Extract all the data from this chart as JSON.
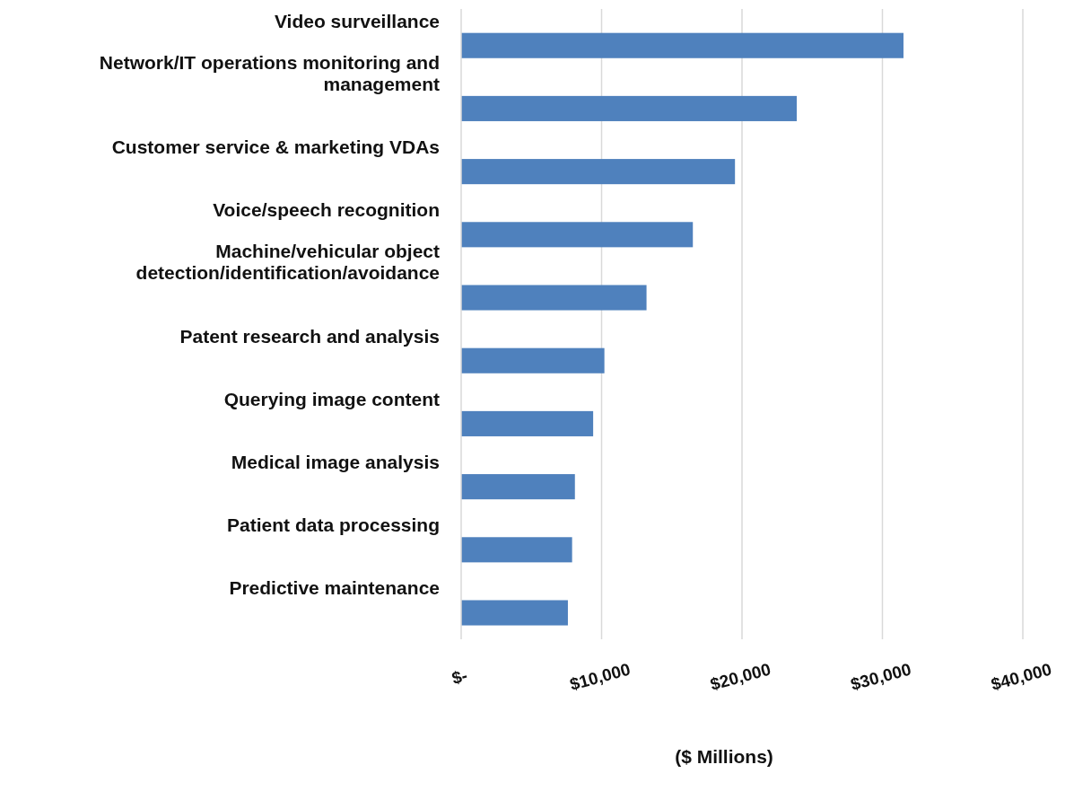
{
  "chart_data": {
    "type": "bar",
    "orientation": "horizontal",
    "xlabel": "($ Millions)",
    "categories": [
      "Video surveillance",
      "Network/IT operations monitoring and management",
      "Customer service & marketing VDAs",
      "Voice/speech recognition",
      "Machine/vehicular object detection/identification/avoidance",
      "Patent research and analysis",
      "Querying image content",
      "Medical image analysis",
      "Patient data processing",
      "Predictive maintenance"
    ],
    "values": [
      31500,
      23900,
      19500,
      16500,
      13200,
      10200,
      9400,
      8100,
      7900,
      7600
    ],
    "color": "#4f81bd",
    "xlim": [
      0,
      40000
    ],
    "xticks": [
      {
        "value": 0,
        "label": "$-"
      },
      {
        "value": 10000,
        "label": "$10,000"
      },
      {
        "value": 20000,
        "label": "$20,000"
      },
      {
        "value": 30000,
        "label": "$30,000"
      },
      {
        "value": 40000,
        "label": "$40,000"
      }
    ],
    "grid": "x"
  }
}
